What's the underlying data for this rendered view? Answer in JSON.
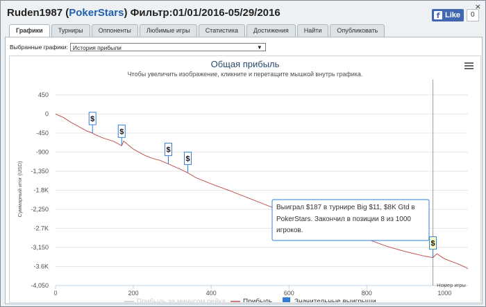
{
  "window": {
    "player": "Ruden1987",
    "site": "PokerStars",
    "filter": "Фильтр:01/01/2016-05/29/2016",
    "close": "×"
  },
  "facebook": {
    "like_label": "Like",
    "like_count": "0",
    "icon": "facebook-f-icon"
  },
  "tabs": [
    {
      "label": "Графики",
      "active": true
    },
    {
      "label": "Турниры"
    },
    {
      "label": "Оппоненты"
    },
    {
      "label": "Любимые игры"
    },
    {
      "label": "Статистика"
    },
    {
      "label": "Достижения"
    },
    {
      "label": "Найти"
    },
    {
      "label": "Опубликовать"
    }
  ],
  "selector": {
    "label": "Выбранные графики:",
    "value": "История прибыли",
    "arrow": "▼"
  },
  "chart_data": {
    "type": "line",
    "title": "Общая прибыль",
    "subtitle": "Чтобы увеличить изображение, кликните и перетащите мышкой внутрь графика.",
    "ylabel": "Суммарный итог (USD)",
    "xlabel": "Номер игры",
    "ylim": [
      -4050,
      450
    ],
    "xlim": [
      0,
      1060
    ],
    "yticks": [
      "450",
      "0",
      "-450",
      "-900",
      "-1,350",
      "-1.8K",
      "-2,250",
      "-2.7K",
      "-3,150",
      "-3.6K",
      "-4,050"
    ],
    "ytick_values": [
      450,
      0,
      -450,
      -900,
      -1350,
      -1800,
      -2250,
      -2700,
      -3150,
      -3600,
      -4050
    ],
    "xticks": [
      "0",
      "200",
      "400",
      "600",
      "800",
      "1000"
    ],
    "xtick_values": [
      0,
      200,
      400,
      600,
      800,
      1000
    ],
    "grid": true,
    "legend_position": "bottom",
    "series": [
      {
        "name": "Прибыль",
        "color": "#c0504d",
        "x": [
          0,
          20,
          40,
          60,
          80,
          95,
          100,
          120,
          150,
          170,
          175,
          200,
          230,
          250,
          270,
          290,
          300,
          320,
          340,
          360,
          400,
          450,
          500,
          550,
          600,
          650,
          700,
          730,
          750,
          800,
          850,
          900,
          950,
          970,
          980,
          1000,
          1020,
          1040,
          1060
        ],
        "y": [
          0,
          -80,
          -200,
          -300,
          -400,
          -450,
          -480,
          -560,
          -650,
          -750,
          -640,
          -830,
          -980,
          -1050,
          -1100,
          -1180,
          -1220,
          -1300,
          -1390,
          -1500,
          -1650,
          -1820,
          -2000,
          -2180,
          -2350,
          -2500,
          -2650,
          -2690,
          -2780,
          -2950,
          -3120,
          -3250,
          -3360,
          -3390,
          -3300,
          -3420,
          -3490,
          -3560,
          -3650
        ]
      }
    ],
    "legend": [
      {
        "label": "Прибыль за минусом рейка",
        "color": "#cccccc",
        "kind": "line"
      },
      {
        "label": "Прибыль",
        "color": "#c0504d",
        "kind": "line"
      },
      {
        "label": "Значительные выигрыши",
        "color": "#2f7ed8",
        "kind": "square"
      }
    ],
    "markers": [
      {
        "x": 95,
        "y": -450,
        "label": "$"
      },
      {
        "x": 170,
        "y": -750,
        "label": "$"
      },
      {
        "x": 290,
        "y": -1180,
        "label": "$"
      },
      {
        "x": 340,
        "y": -1390,
        "label": "$"
      },
      {
        "x": 730,
        "y": -2690,
        "label": "$"
      },
      {
        "x": 970,
        "y": -3390,
        "label": "$",
        "highlighted": true
      }
    ],
    "crosshair_x": 970,
    "tooltip": "Выиграл $187 в турнире Big $11, $8K Gtd в PokerStars. Закончил в позиции 8 из 1000 игроков."
  },
  "menu_icon": "hamburger-menu-icon"
}
